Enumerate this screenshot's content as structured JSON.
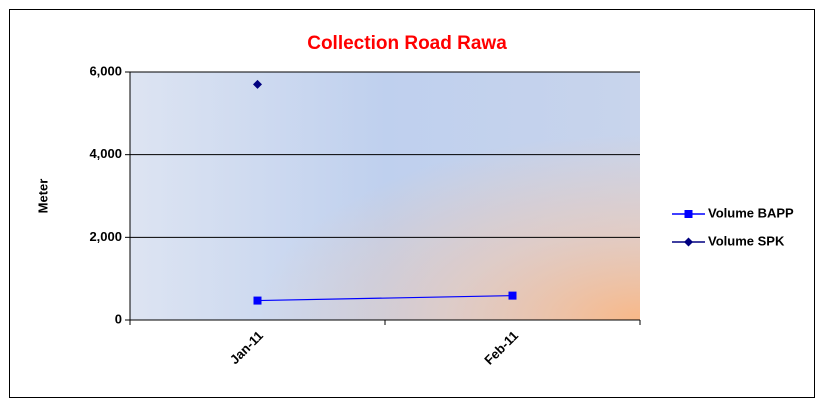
{
  "chart_data": {
    "type": "line",
    "title": "Collection Road Rawa",
    "y_label": "Meter",
    "categories": [
      "Jan-11",
      "Feb-11"
    ],
    "series": [
      {
        "name": "Volume BAPP",
        "color": "#0000ff",
        "marker": "square",
        "values": [
          470,
          590
        ]
      },
      {
        "name": "Volume SPK",
        "color": "#000080",
        "marker": "diamond",
        "values": [
          5700,
          null
        ]
      }
    ],
    "ylim": [
      0,
      6000
    ],
    "yticks": [
      0,
      {
        "value": 2000,
        "label": "2,000"
      },
      {
        "value": 4000,
        "label": "4,000"
      },
      {
        "value": 6000,
        "label": "6,000"
      }
    ],
    "grid": true,
    "legend": "right"
  }
}
